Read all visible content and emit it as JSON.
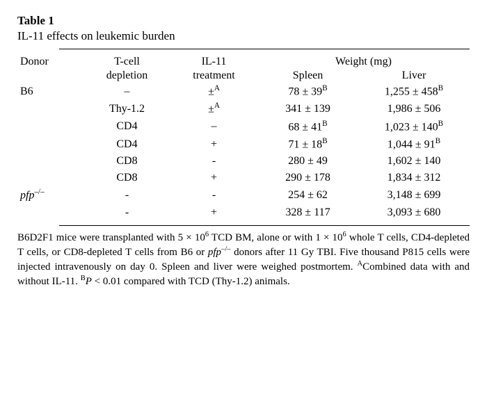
{
  "table": {
    "label": "Table 1",
    "title": "IL-11 effects on leukemic burden",
    "columns": [
      "Donor",
      "T-cell",
      "IL-11",
      "Weight (mg)"
    ],
    "subcolumns": [
      "",
      "depletion",
      "treatment",
      "Spleen",
      "Liver"
    ],
    "rows": [
      {
        "donor": "B6",
        "tcell": "–",
        "il11": "±",
        "il11_sup": "A",
        "spleen": "78 ± 39",
        "spleen_sup": "B",
        "liver": "1,255 ± 458",
        "liver_sup": "B"
      },
      {
        "donor": "",
        "tcell": "Thy-1.2",
        "il11": "±",
        "il11_sup": "A",
        "spleen": "341 ± 139",
        "spleen_sup": "",
        "liver": "1,986 ± 506",
        "liver_sup": ""
      },
      {
        "donor": "",
        "tcell": "CD4",
        "il11": "–",
        "il11_sup": "",
        "spleen": "68 ± 41",
        "spleen_sup": "B",
        "liver": "1,023 ± 140",
        "liver_sup": "B"
      },
      {
        "donor": "",
        "tcell": "CD4",
        "il11": "+",
        "il11_sup": "",
        "spleen": "71 ± 18",
        "spleen_sup": "B",
        "liver": "1,044 ± 91",
        "liver_sup": "B"
      },
      {
        "donor": "",
        "tcell": "CD8",
        "il11": "-",
        "il11_sup": "",
        "spleen": "280 ± 49",
        "spleen_sup": "",
        "liver": "1,602 ± 140",
        "liver_sup": ""
      },
      {
        "donor": "",
        "tcell": "CD8",
        "il11": "+",
        "il11_sup": "",
        "spleen": "290 ± 178",
        "spleen_sup": "",
        "liver": "1,834 ± 312",
        "liver_sup": ""
      },
      {
        "donor": "pfp–/–",
        "donor_italic": true,
        "tcell": "-",
        "il11": "-",
        "il11_sup": "",
        "spleen": "254 ± 62",
        "spleen_sup": "",
        "liver": "3,148 ± 699",
        "liver_sup": ""
      },
      {
        "donor": "",
        "tcell": "-",
        "il11": "+",
        "il11_sup": "",
        "spleen": "328 ± 117",
        "spleen_sup": "",
        "liver": "3,093 ± 680",
        "liver_sup": ""
      }
    ],
    "footnote_parts": {
      "p1": "B6D2F1 mice were transplanted with 5 × 10",
      "sup1": "6",
      "p2": " TCD BM, alone or with 1 × 10",
      "sup2": "6",
      "p3": " whole T cells, CD4-depleted T cells, or CD8-depleted T cells from B6 or ",
      "pfp": "pfp",
      "pfp_sup": "–/–",
      "p4": " donors after 11 Gy TBI. Five thousand P815 cells were injected intravenously on day 0. Spleen and liver were weighed postmortem. ",
      "supA": "A",
      "p5": "Combined data with and without IL-11. ",
      "supB": "B",
      "p6": "P",
      "p7": " < 0.01 compared with TCD (Thy-1.2) animals."
    }
  },
  "style": {
    "font_family": "Georgia, 'Times New Roman', serif",
    "background_color": "#ffffff",
    "text_color": "#000000",
    "title_fontsize": 17,
    "body_fontsize": 16,
    "footnote_fontsize": 15
  }
}
